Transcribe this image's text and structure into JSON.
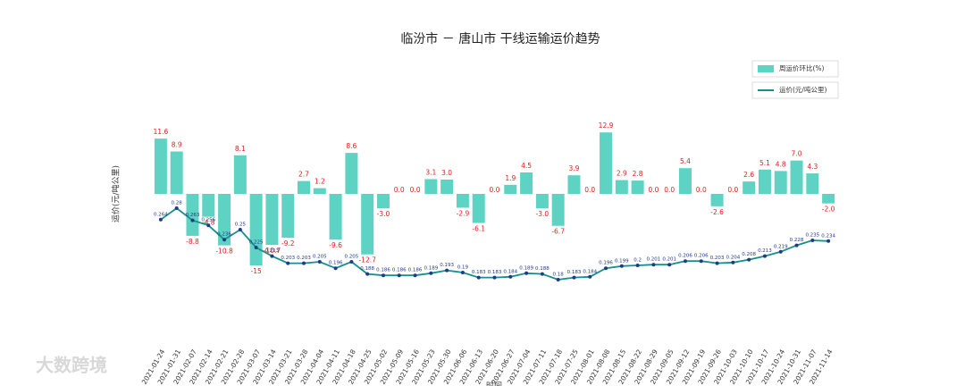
{
  "chart_data": {
    "type": "bar_line",
    "title": "临汾市 － 唐山市 干线运输运价趋势",
    "ylabel": "运价(元/吨公里)",
    "xlabel": "时间",
    "watermark": "大数跨境",
    "legend": "upper right",
    "categories": [
      "2021-01-24",
      "2021-01-31",
      "2021-02-07",
      "2021-02-14",
      "2021-02-21",
      "2021-02-28",
      "2021-03-07",
      "2021-03-14",
      "2021-03-21",
      "2021-03-28",
      "2021-04-04",
      "2021-04-11",
      "2021-04-18",
      "2021-04-25",
      "2021-05-02",
      "2021-05-09",
      "2021-05-16",
      "2021-05-23",
      "2021-05-30",
      "2021-06-06",
      "2021-06-13",
      "2021-06-20",
      "2021-06-27",
      "2021-07-04",
      "2021-07-11",
      "2021-07-18",
      "2021-07-25",
      "2021-08-01",
      "2021-08-08",
      "2021-08-15",
      "2021-08-22",
      "2021-08-29",
      "2021-09-05",
      "2021-09-12",
      "2021-09-19",
      "2021-09-26",
      "2021-10-03",
      "2021-10-10",
      "2021-10-17",
      "2021-10-24",
      "2021-10-31",
      "2021-11-07",
      "2021-11-14"
    ],
    "ylim": [
      -30,
      30
    ],
    "y2lim": [
      0.1,
      0.5
    ],
    "series": [
      {
        "name": "周运价环比(%)",
        "color": "#5fd3c3",
        "label_color": "#e02020",
        "values": [
          11.6,
          8.9,
          -8.8,
          -4.8,
          -10.8,
          8.1,
          -15,
          -10.7,
          -9.2,
          2.7,
          1.2,
          -9.6,
          8.6,
          -12.7,
          -3.0,
          0.0,
          0.0,
          3.1,
          3.0,
          -2.9,
          -6.1,
          0.0,
          1.9,
          4.5,
          -3.0,
          -6.7,
          3.9,
          0.0,
          12.9,
          2.9,
          2.8,
          0.0,
          0.0,
          5.4,
          0.0,
          -2.6,
          0.0,
          2.6,
          5.1,
          4.8,
          7.0,
          4.3,
          -2.0
        ],
        "value_labels": [
          "11.6",
          "8.9",
          "-8.8",
          "-4.8",
          "-10.8",
          "8.1",
          "-15",
          "-10.7",
          "-9.2",
          "2.7",
          "1.2",
          "-9.6",
          "8.6",
          "-12.7",
          "-3.0",
          "0.0",
          "0.0",
          "3.1",
          "3.0",
          "-2.9",
          "-6.1",
          "0.0",
          "1.9",
          "4.5",
          "-3.0",
          "-6.7",
          "3.9",
          "0.0",
          "12.9",
          "2.9",
          "2.8",
          "0.0",
          "0.0",
          "5.4",
          "0.0",
          "-2.6",
          "0.0",
          "2.6",
          "5.1",
          "4.8",
          "7.0",
          "4.3",
          "-2.0"
        ]
      },
      {
        "name": "运价(元/吨公里)",
        "color": "#15908a",
        "point_color": "#1f3a8a",
        "axis": "y2",
        "values": [
          0.264,
          0.28,
          0.263,
          0.256,
          0.236,
          0.25,
          0.225,
          0.213,
          0.203,
          0.203,
          0.205,
          0.196,
          0.205,
          0.188,
          0.186,
          0.186,
          0.186,
          0.189,
          0.193,
          0.19,
          0.183,
          0.183,
          0.184,
          0.189,
          0.188,
          0.18,
          0.183,
          0.184,
          0.196,
          0.199,
          0.2,
          0.201,
          0.201,
          0.206,
          0.206,
          0.203,
          0.204,
          0.208,
          0.213,
          0.219,
          0.228,
          0.235,
          0.234
        ]
      }
    ]
  }
}
